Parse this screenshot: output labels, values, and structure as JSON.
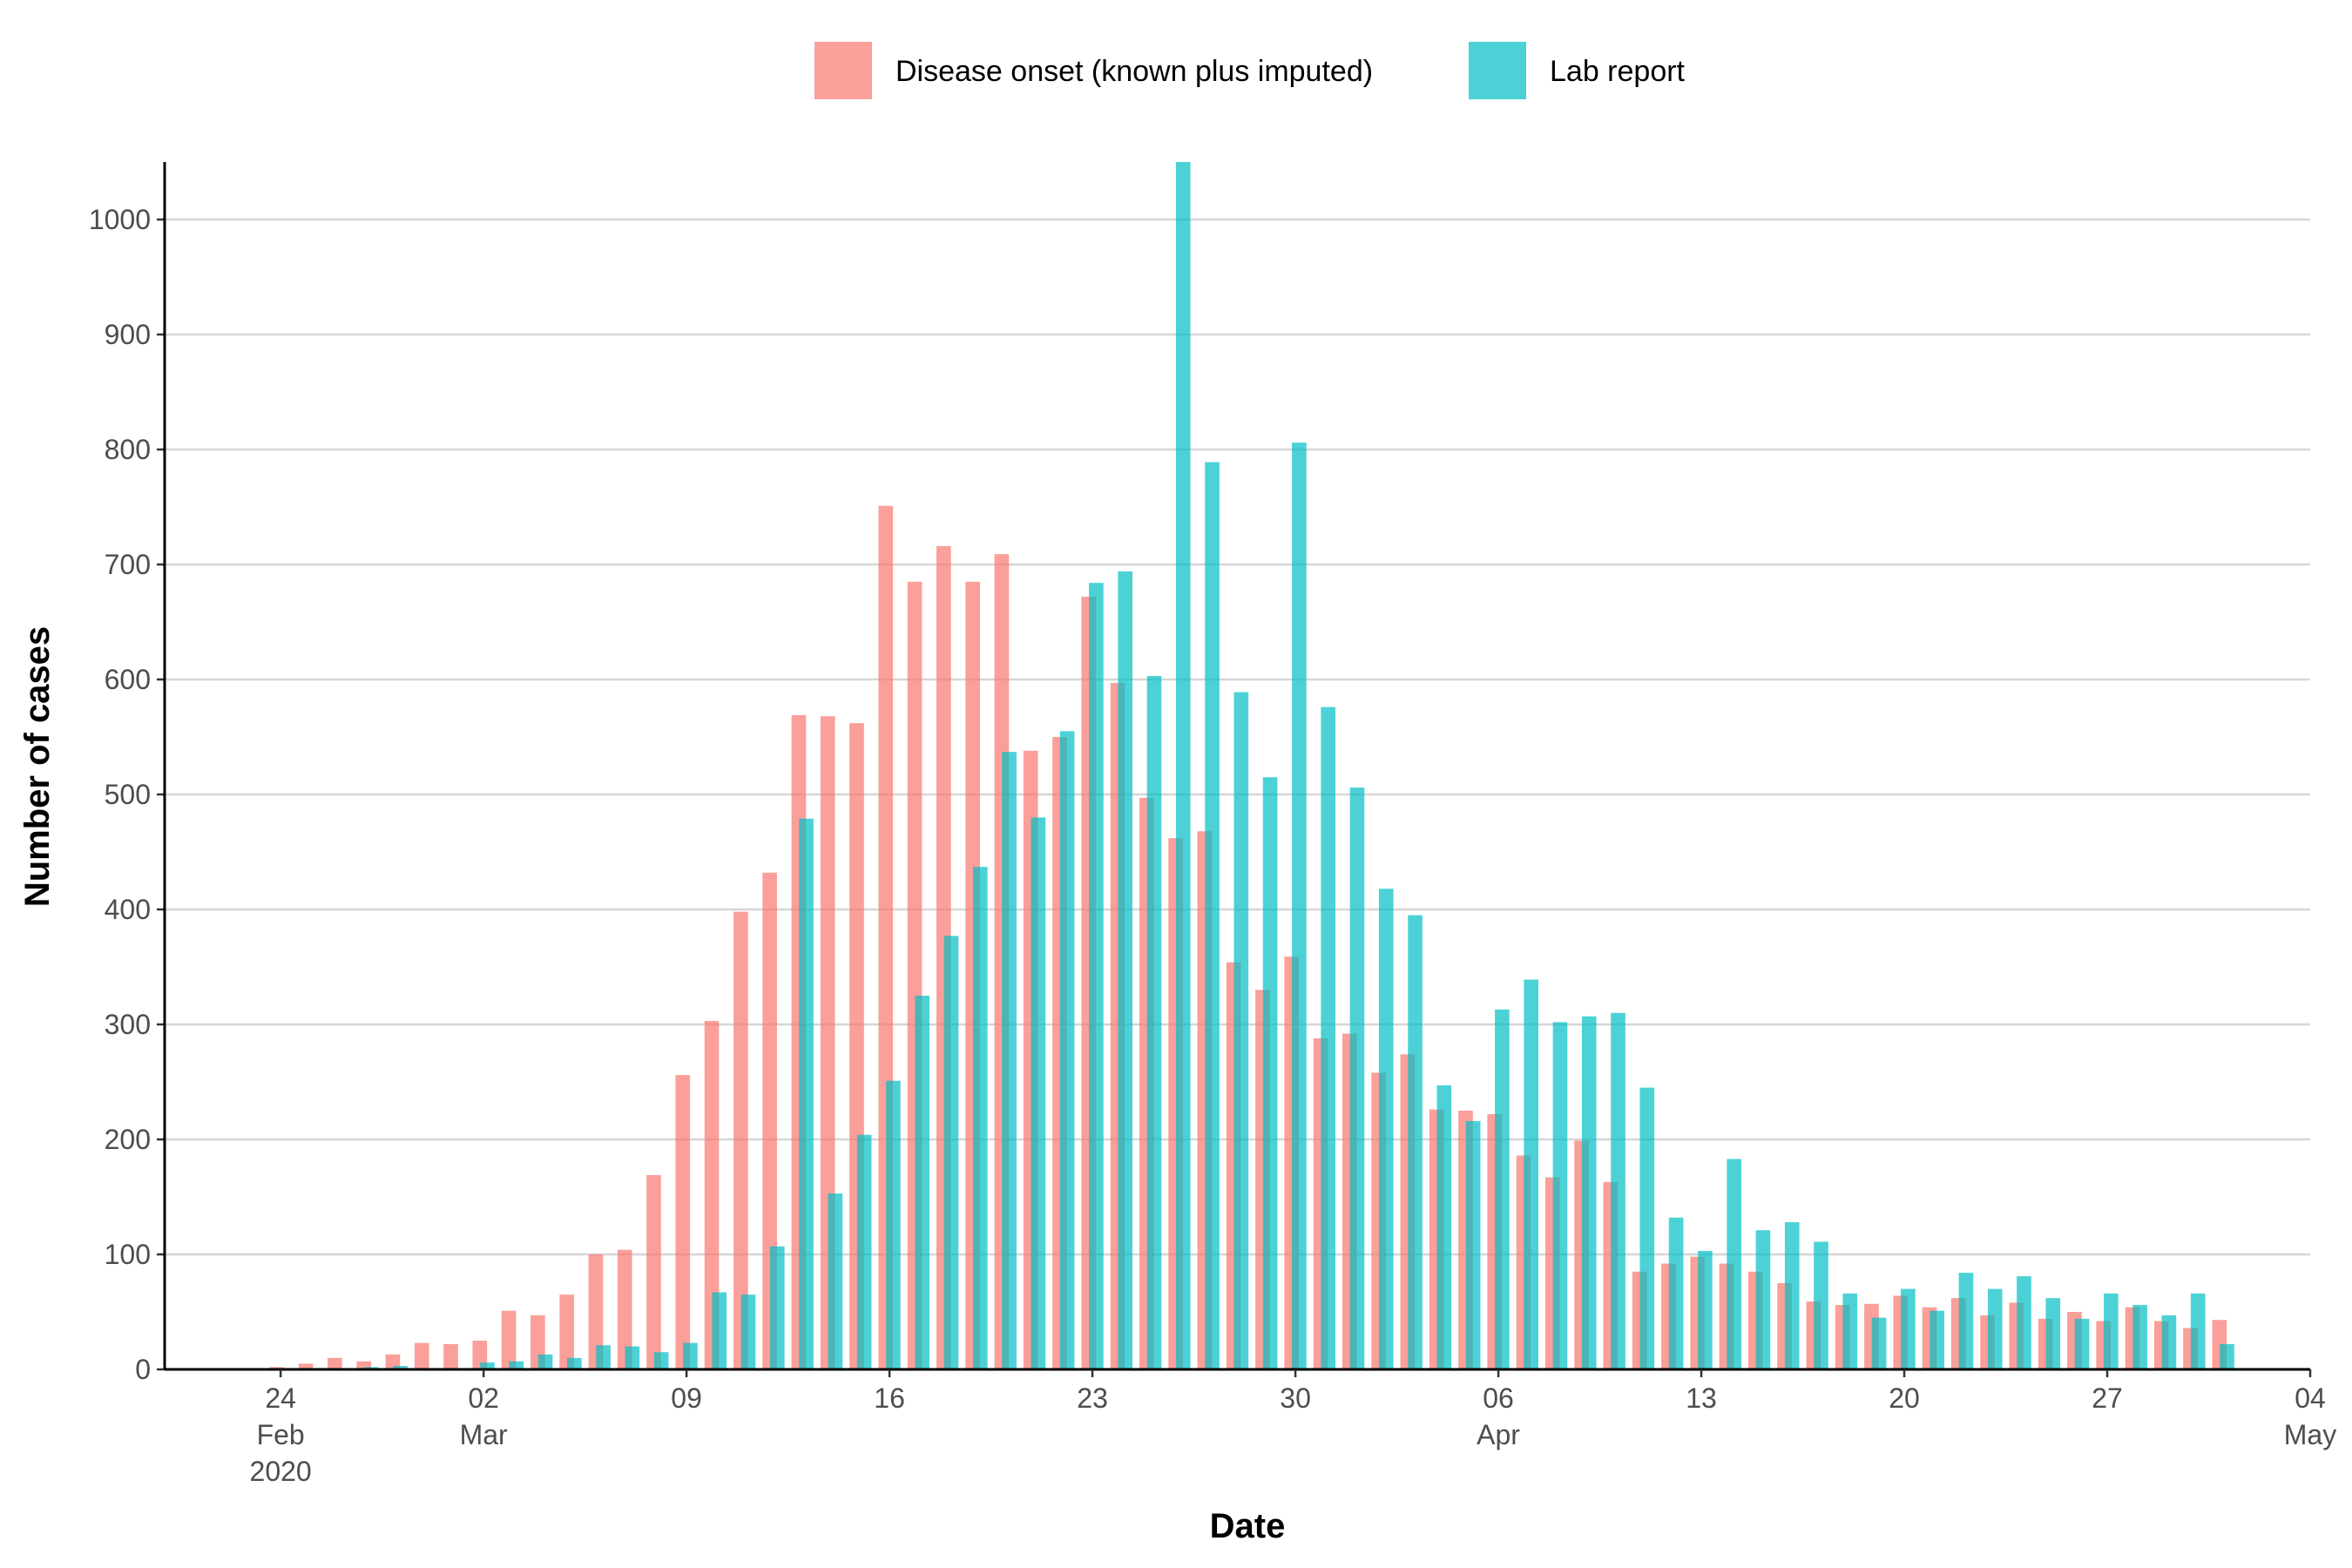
{
  "chart_data": {
    "type": "bar",
    "xlabel": "Date",
    "ylabel": "Number of cases",
    "x": [
      "2020-02-24",
      "2020-02-25",
      "2020-02-26",
      "2020-02-27",
      "2020-02-28",
      "2020-02-29",
      "2020-03-01",
      "2020-03-02",
      "2020-03-03",
      "2020-03-04",
      "2020-03-05",
      "2020-03-06",
      "2020-03-07",
      "2020-03-08",
      "2020-03-09",
      "2020-03-10",
      "2020-03-11",
      "2020-03-12",
      "2020-03-13",
      "2020-03-14",
      "2020-03-15",
      "2020-03-16",
      "2020-03-17",
      "2020-03-18",
      "2020-03-19",
      "2020-03-20",
      "2020-03-21",
      "2020-03-22",
      "2020-03-23",
      "2020-03-24",
      "2020-03-25",
      "2020-03-26",
      "2020-03-27",
      "2020-03-28",
      "2020-03-29",
      "2020-03-30",
      "2020-03-31",
      "2020-04-01",
      "2020-04-02",
      "2020-04-03",
      "2020-04-04",
      "2020-04-05",
      "2020-04-06",
      "2020-04-07",
      "2020-04-08",
      "2020-04-09",
      "2020-04-10",
      "2020-04-11",
      "2020-04-12",
      "2020-04-13",
      "2020-04-14",
      "2020-04-15",
      "2020-04-16",
      "2020-04-17",
      "2020-04-18",
      "2020-04-19",
      "2020-04-20",
      "2020-04-21",
      "2020-04-22",
      "2020-04-23",
      "2020-04-24",
      "2020-04-25",
      "2020-04-26",
      "2020-04-27",
      "2020-04-28",
      "2020-04-29",
      "2020-04-30",
      "2020-05-01"
    ],
    "series": [
      {
        "name": "Disease onset (known plus imputed)",
        "color": "#F8766D",
        "values": [
          2,
          5,
          10,
          7,
          13,
          23,
          22,
          25,
          51,
          47,
          65,
          100,
          104,
          169,
          256,
          303,
          398,
          432,
          569,
          568,
          562,
          751,
          685,
          716,
          685,
          709,
          538,
          550,
          672,
          597,
          497,
          462,
          468,
          354,
          330,
          359,
          288,
          292,
          258,
          274,
          226,
          225,
          222,
          186,
          167,
          199,
          163,
          85,
          92,
          98,
          92,
          85,
          75,
          59,
          56,
          57,
          64,
          54,
          62,
          47,
          58,
          44,
          50,
          42,
          54,
          42,
          36,
          43
        ]
      },
      {
        "name": "Lab report",
        "color": "#00BFC4",
        "values": [
          0,
          0,
          0,
          2,
          3,
          0,
          0,
          6,
          7,
          13,
          10,
          21,
          20,
          15,
          23,
          67,
          65,
          107,
          479,
          153,
          204,
          251,
          325,
          377,
          437,
          537,
          480,
          555,
          684,
          694,
          603,
          1050,
          789,
          589,
          515,
          806,
          576,
          506,
          418,
          395,
          247,
          216,
          313,
          339,
          302,
          307,
          310,
          245,
          132,
          103,
          183,
          121,
          128,
          111,
          66,
          45,
          70,
          51,
          84,
          70,
          81,
          62,
          44,
          66,
          56,
          47,
          66,
          22
        ]
      }
    ],
    "xlim": [
      "2020-02-20",
      "2020-05-04"
    ],
    "xticks": [
      {
        "value": "2020-02-24",
        "label": "24 Feb 2020"
      },
      {
        "value": "2020-03-02",
        "label": "02 Mar"
      },
      {
        "value": "2020-03-09",
        "label": "09"
      },
      {
        "value": "2020-03-16",
        "label": "16"
      },
      {
        "value": "2020-03-23",
        "label": "23"
      },
      {
        "value": "2020-03-30",
        "label": "30"
      },
      {
        "value": "2020-04-06",
        "label": "06 Apr"
      },
      {
        "value": "2020-04-13",
        "label": "13"
      },
      {
        "value": "2020-04-20",
        "label": "20"
      },
      {
        "value": "2020-04-27",
        "label": "27"
      },
      {
        "value": "2020-05-04",
        "label": "04 May"
      }
    ],
    "ylim": [
      0,
      1050
    ],
    "yticks": [
      0,
      100,
      200,
      300,
      400,
      500,
      600,
      700,
      800,
      900,
      1000
    ],
    "grid": true,
    "legend": "top"
  }
}
